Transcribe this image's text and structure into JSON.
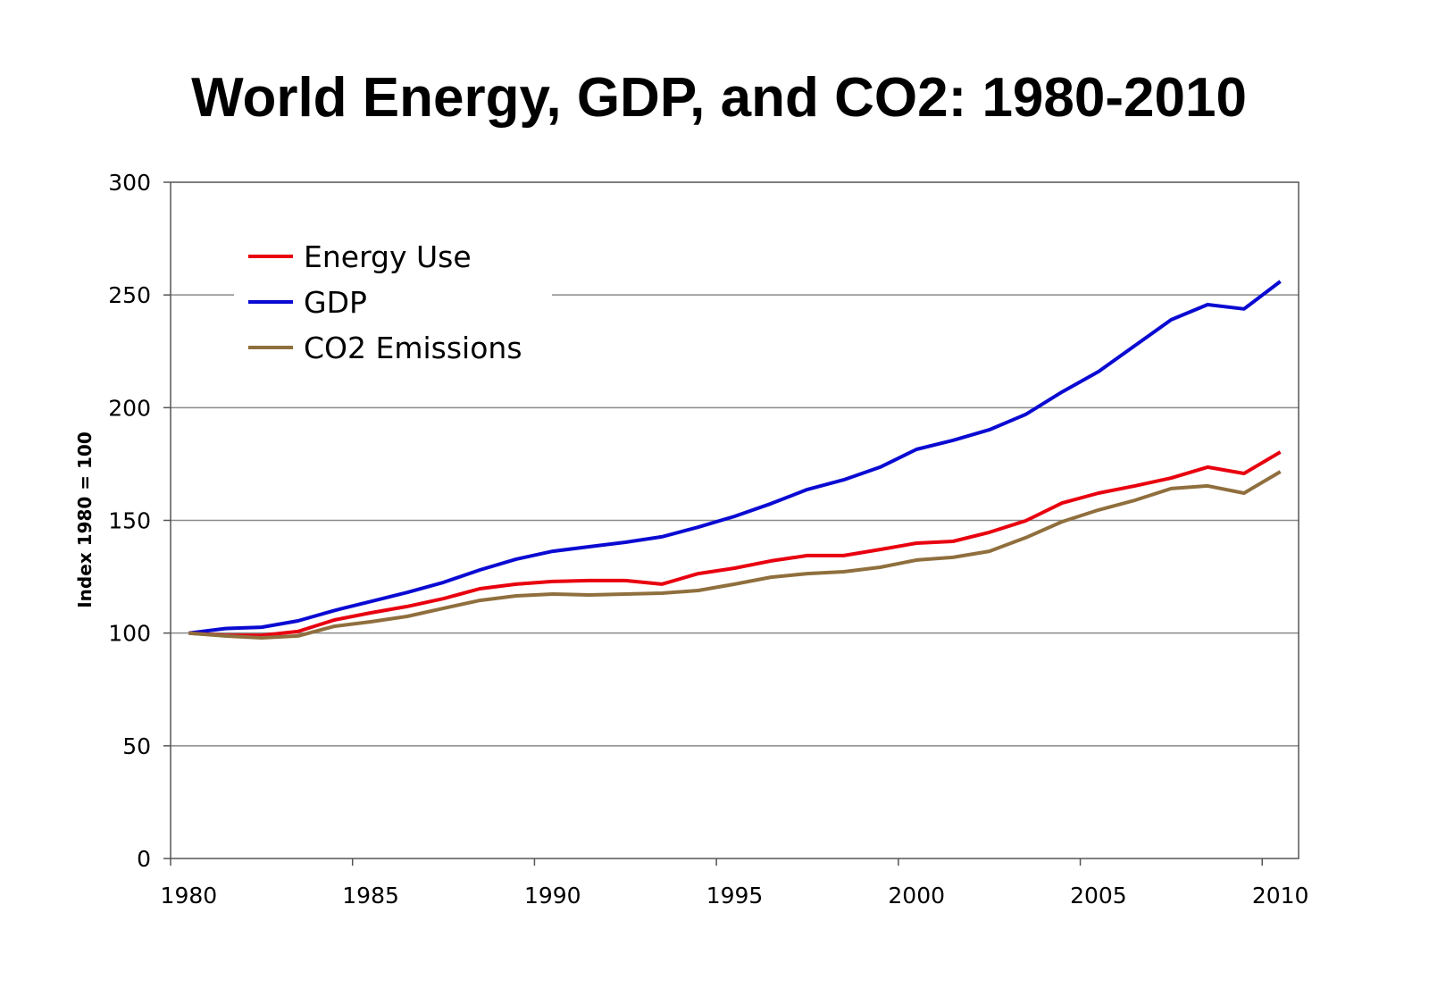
{
  "chart_data": {
    "type": "line",
    "title": "World Energy, GDP, and CO2: 1980-2010",
    "xlabel": "",
    "ylabel": "Index 1980 = 100",
    "x": [
      1980,
      1981,
      1982,
      1983,
      1984,
      1985,
      1986,
      1987,
      1988,
      1989,
      1990,
      1991,
      1992,
      1993,
      1994,
      1995,
      1996,
      1997,
      1998,
      1999,
      2000,
      2001,
      2002,
      2003,
      2004,
      2005,
      2006,
      2007,
      2008,
      2009,
      2010
    ],
    "xticks": [
      "1980",
      "1985",
      "1990",
      "1995",
      "2000",
      "2005",
      "2010"
    ],
    "yticks": [
      "0",
      "50",
      "100",
      "150",
      "200",
      "250",
      "300"
    ],
    "ylim": [
      0,
      300
    ],
    "grid": true,
    "legend_position": "top-left",
    "series": [
      {
        "name": "Energy Use",
        "color": "#e8000f",
        "values": [
          100,
          99,
          99,
          100.7,
          105.8,
          109,
          111.8,
          115.3,
          119.7,
          121.7,
          122.9,
          123.3,
          123.3,
          121.7,
          126.4,
          128.8,
          132,
          134.4,
          134.4,
          137.1,
          139.9,
          140.7,
          144.7,
          149.8,
          157.7,
          162.1,
          165.3,
          168.8,
          173.6,
          170.8,
          180.3
        ]
      },
      {
        "name": "GDP",
        "color": "#0a0ad2",
        "values": [
          100,
          102,
          102.6,
          105.4,
          110,
          114,
          118,
          122.5,
          128,
          132.8,
          136.3,
          138.3,
          140.3,
          142.7,
          147,
          151.8,
          157.4,
          163.7,
          168,
          173.6,
          181.5,
          185.5,
          190.2,
          197,
          207,
          216,
          227.5,
          239,
          245.7,
          243.8,
          256
        ]
      },
      {
        "name": "CO2 Emissions",
        "color": "#8f6f3d",
        "values": [
          100,
          98.7,
          97.9,
          98.7,
          103,
          105,
          107.4,
          111,
          114.5,
          116.5,
          117.3,
          116.9,
          117.3,
          117.7,
          118.9,
          121.7,
          124.8,
          126.4,
          127.2,
          129.2,
          132.4,
          133.6,
          136.3,
          142.3,
          149.4,
          154.6,
          158.9,
          164.1,
          165.3,
          162.1,
          171.6
        ]
      }
    ]
  }
}
